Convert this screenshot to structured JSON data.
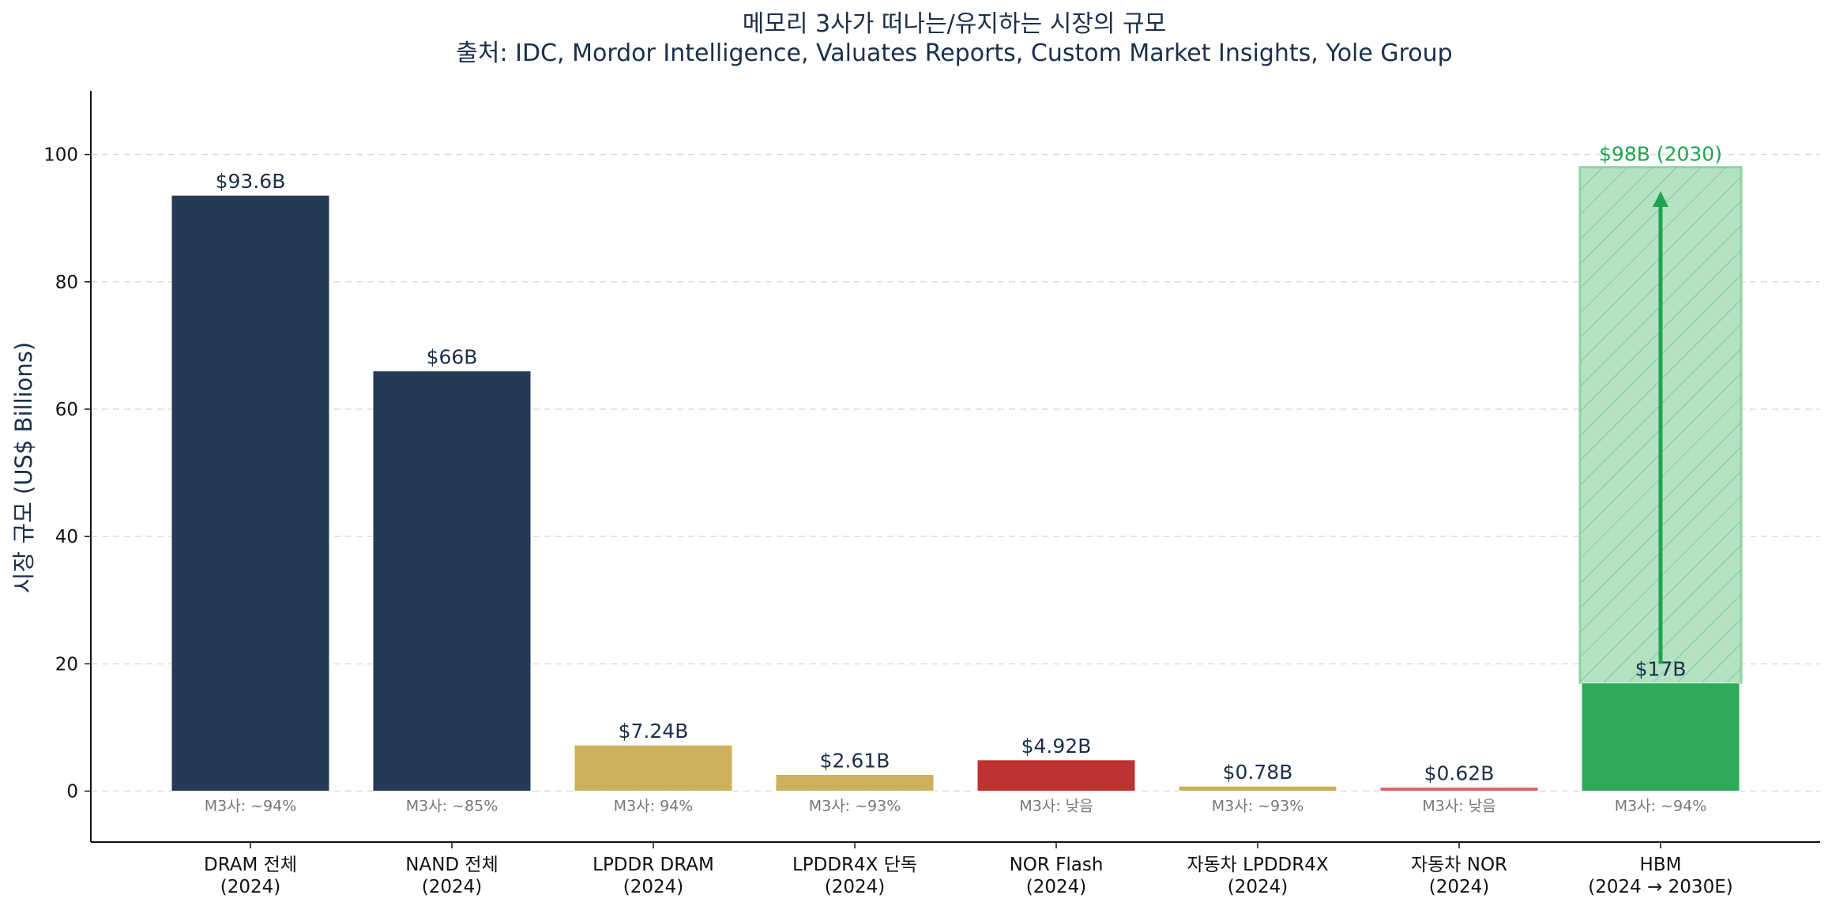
{
  "chart_data": {
    "type": "bar",
    "title": "메모리 3사가 떠나는/유지하는 시장의 규모",
    "subtitle": "출처: IDC, Mordor Intelligence, Valuates Reports, Custom Market Insights, Yole Group",
    "ylabel": "시장 규모 (US$ Billions)",
    "xlabel": "",
    "ylim": [
      -8,
      110
    ],
    "yticks": [
      0,
      20,
      40,
      60,
      80,
      100
    ],
    "grid": "horizontal dashed",
    "categories": [
      {
        "line1": "DRAM 전체",
        "line2": "(2024)"
      },
      {
        "line1": "NAND 전체",
        "line2": "(2024)"
      },
      {
        "line1": "LPDDR DRAM",
        "line2": "(2024)"
      },
      {
        "line1": "LPDDR4X 단독",
        "line2": "(2024)"
      },
      {
        "line1": "NOR Flash",
        "line2": "(2024)"
      },
      {
        "line1": "자동차 LPDDR4X",
        "line2": "(2024)"
      },
      {
        "line1": "자동차 NOR",
        "line2": "(2024)"
      },
      {
        "line1": "HBM",
        "line2": "(2024 → 2030E)"
      }
    ],
    "values": [
      93.6,
      66,
      7.24,
      2.61,
      4.92,
      0.78,
      0.62,
      17
    ],
    "value_labels": [
      "$93.6B",
      "$66B",
      "$7.24B",
      "$2.61B",
      "$4.92B",
      "$0.78B",
      "$0.62B",
      "$17B"
    ],
    "share_labels": [
      "M3사: ~94%",
      "M3사: ~85%",
      "M3사: 94%",
      "M3사: ~93%",
      "M3사: 낮음",
      "M3사: ~93%",
      "M3사: 낮음",
      "M3사: ~94%"
    ],
    "colors": [
      "#243a56",
      "#243a56",
      "#cdb05c",
      "#cdb05c",
      "#c03131",
      "#cdb05c",
      "#e06070",
      "#2eaa58"
    ],
    "projection": {
      "category_index": 7,
      "from": 17,
      "to": 98,
      "label": "$98B (2030)",
      "color": "#2eaa58",
      "fill": "#b5e2c3"
    }
  }
}
